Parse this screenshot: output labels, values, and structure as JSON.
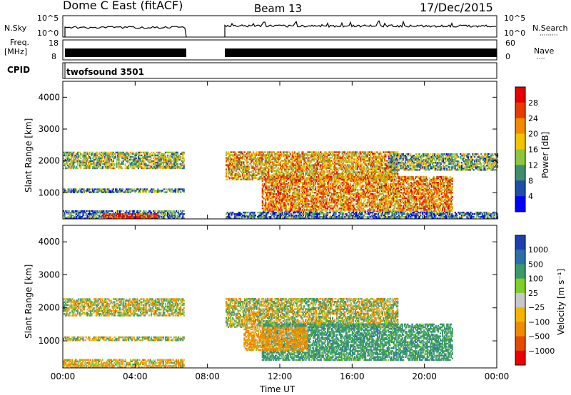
{
  "header": {
    "station": "Dome C East (fitACF)",
    "beam": "Beam 13",
    "date": "17/Dec/2015"
  },
  "nsky_panel": {
    "left_label": "N.Sky",
    "left_ticks": [
      "10^5",
      "10^0"
    ],
    "right_ticks": [
      "10^5",
      "10^0"
    ],
    "right_label": "N.Search",
    "right_key": "·········"
  },
  "freq_panel": {
    "left_label_1": "Freq.",
    "left_label_2": "[MHz]",
    "left_ticks": [
      "18",
      "8"
    ],
    "right_ticks": [
      "60",
      "0"
    ],
    "right_label": "Nave",
    "right_key": "····"
  },
  "cpid_panel": {
    "label": "CPID",
    "program": "twofsound 3501"
  },
  "colors": {
    "power_bar": [
      "#0000ff",
      "#1d4fa8",
      "#3f8f6e",
      "#8dc63f",
      "#f2c400",
      "#f28a00",
      "#e63c00",
      "#e60000"
    ],
    "velocity_bar": [
      "#ee0000",
      "#e64a00",
      "#f18a00",
      "#f5b400",
      "#c8c8c8",
      "#7fcf2a",
      "#3c9a6a",
      "#2c6fa8",
      "#1d3fb0"
    ]
  },
  "chart_data": [
    {
      "type": "heatmap",
      "name": "power",
      "title": "",
      "xlabel": "",
      "ylabel": "Slant Range [km]",
      "xlim": [
        0,
        24
      ],
      "ylim": [
        180,
        4500
      ],
      "x_ticks": [
        0,
        4,
        8,
        12,
        16,
        20,
        24
      ],
      "y_ticks": [
        1000,
        2000,
        3000,
        4000
      ],
      "y_tick_labels": [
        "1000",
        "2000",
        "3000",
        "4000"
      ],
      "data_gap_hours": [
        6.75,
        8.9
      ],
      "colorbar": {
        "label": "Power [dB]",
        "range": [
          0,
          32
        ],
        "ticks": [
          "4",
          "8",
          "12",
          "16",
          "20",
          "24",
          "28"
        ]
      },
      "echo_regions": [
        {
          "t0": 0.0,
          "t1": 6.7,
          "r0": 1750,
          "r1": 2250,
          "value": 14
        },
        {
          "t0": 0.0,
          "t1": 6.7,
          "r0": 1000,
          "r1": 1100,
          "value": 10
        },
        {
          "t0": 0.0,
          "t1": 6.7,
          "r0": 180,
          "r1": 450,
          "value": 8
        },
        {
          "t0": 2.2,
          "t1": 5.2,
          "r0": 180,
          "r1": 320,
          "value": 28
        },
        {
          "t0": 9.0,
          "t1": 18.5,
          "r0": 1400,
          "r1": 2300,
          "value": 20
        },
        {
          "t0": 11.0,
          "t1": 21.5,
          "r0": 400,
          "r1": 1500,
          "value": 22
        },
        {
          "t0": 9.0,
          "t1": 24.0,
          "r0": 180,
          "r1": 400,
          "value": 8
        },
        {
          "t0": 18.0,
          "t1": 24.0,
          "r0": 1700,
          "r1": 2200,
          "value": 12
        }
      ]
    },
    {
      "type": "heatmap",
      "name": "velocity",
      "title": "",
      "xlabel": "Time UT",
      "ylabel": "Slant Range [km]",
      "xlim": [
        0,
        24
      ],
      "ylim": [
        180,
        4500
      ],
      "x_ticks": [
        0,
        4,
        8,
        12,
        16,
        20,
        24
      ],
      "x_tick_labels": [
        "00:00",
        "04:00",
        "08:00",
        "12:00",
        "16:00",
        "20:00",
        "00:00"
      ],
      "y_ticks": [
        1000,
        2000,
        3000,
        4000
      ],
      "y_tick_labels": [
        "1000",
        "2000",
        "3000",
        "4000"
      ],
      "data_gap_hours": [
        6.75,
        8.9
      ],
      "colorbar": {
        "label": "Velocity [m s⁻¹]",
        "ticks": [
          "1000",
          "500",
          "100",
          "25",
          "−25",
          "−100",
          "−500",
          "−1000"
        ]
      },
      "echo_regions": [
        {
          "t0": 0.0,
          "t1": 6.7,
          "r0": 1750,
          "r1": 2250,
          "value": 0
        },
        {
          "t0": 0.0,
          "t1": 6.7,
          "r0": 1000,
          "r1": 1100,
          "value": 0
        },
        {
          "t0": 0.0,
          "t1": 6.7,
          "r0": 180,
          "r1": 450,
          "value": -100
        },
        {
          "t0": 9.0,
          "t1": 18.5,
          "r0": 1400,
          "r1": 2300,
          "value": 0
        },
        {
          "t0": 11.0,
          "t1": 21.5,
          "r0": 400,
          "r1": 1500,
          "value": 300
        },
        {
          "t0": 10.0,
          "t1": 13.5,
          "r0": 700,
          "r1": 1400,
          "value": -200
        }
      ]
    }
  ]
}
